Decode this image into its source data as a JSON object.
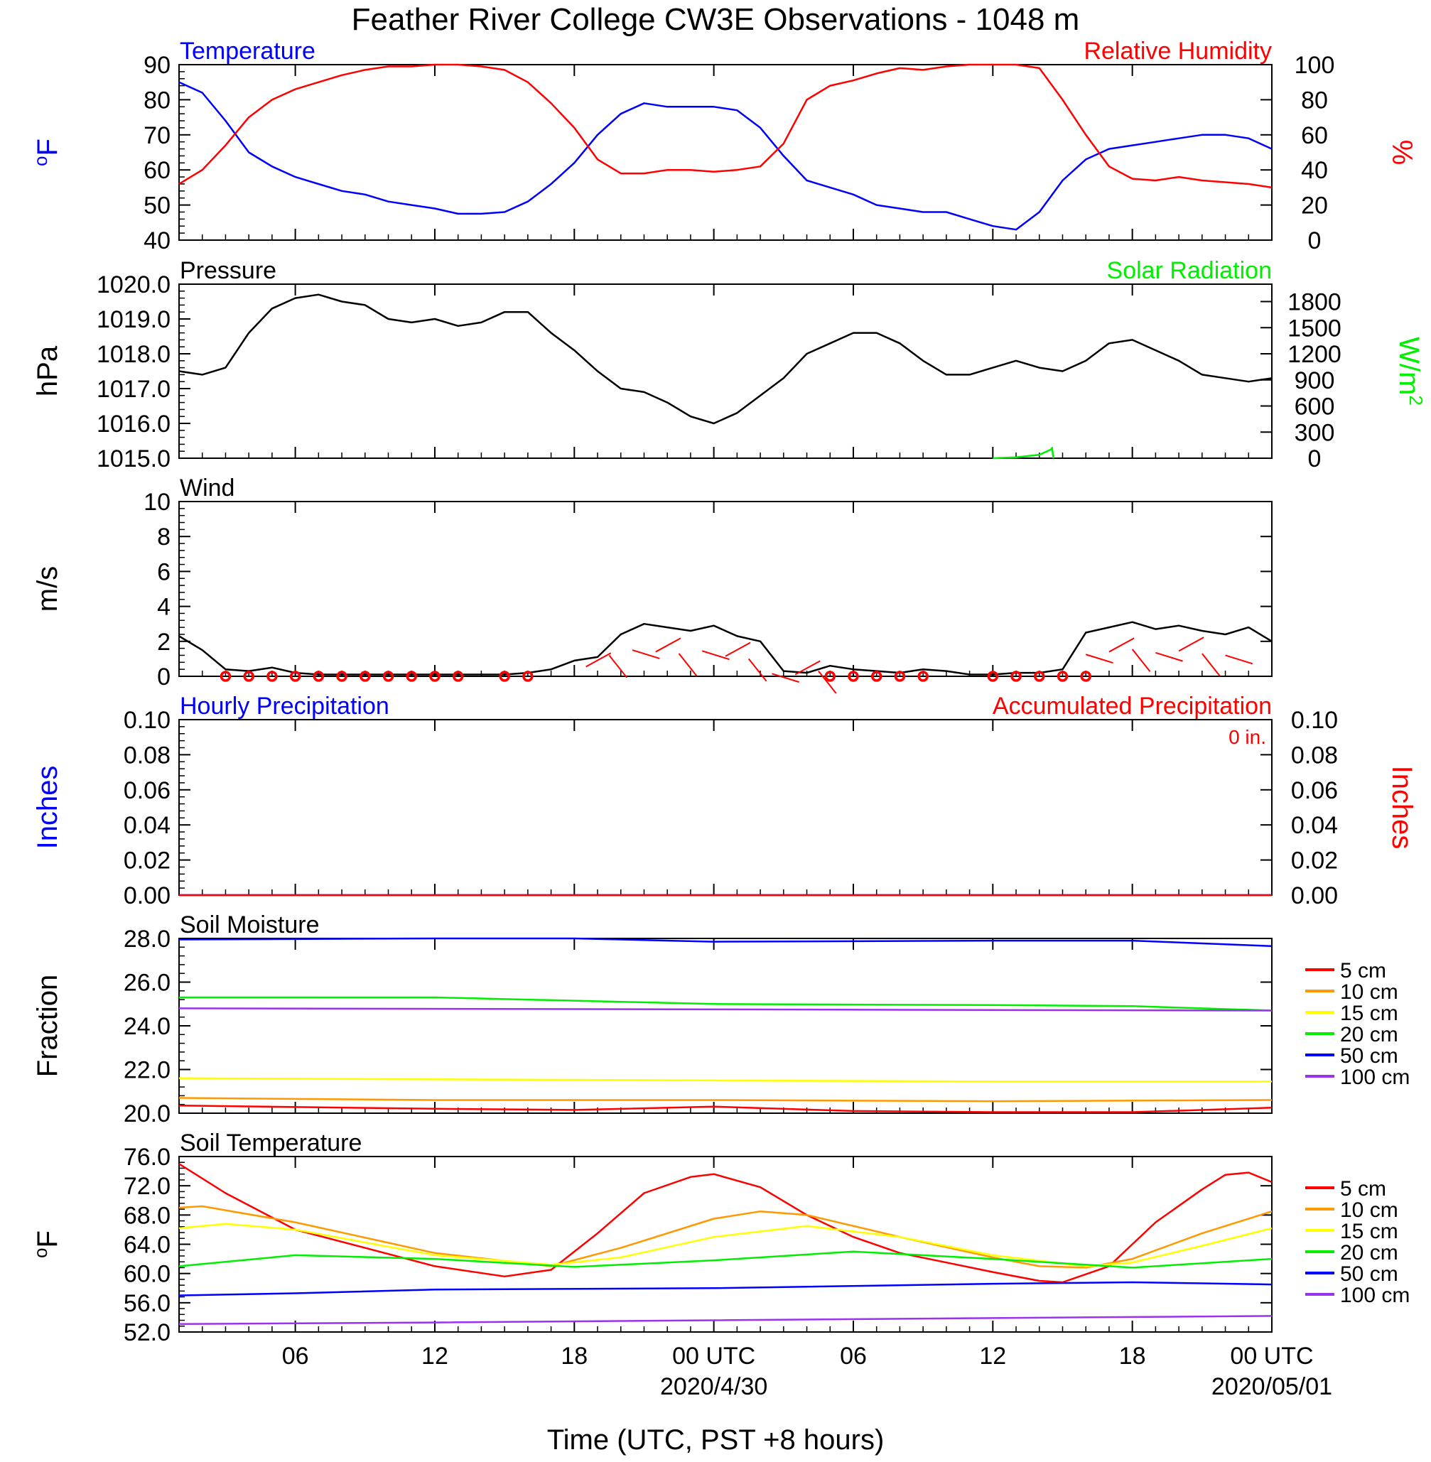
{
  "figure": {
    "title": "Feather River College CW3E Observations - 1048 m",
    "xlabel": "Time (UTC, PST +8 hours)"
  },
  "colors": {
    "temperature": "#0000ff",
    "humidity": "#ff0000",
    "solar": "#00ee00",
    "wind_speed": "#000000",
    "wind_barb": "#ff0000",
    "hourly_precip": "#0000ff",
    "accum_precip": "#ff0000",
    "depth_5cm": "#ff0000",
    "depth_10cm": "#ff9900",
    "depth_15cm": "#ffff00",
    "depth_20cm": "#00ee00",
    "depth_50cm": "#0000ff",
    "depth_100cm": "#9933ee"
  },
  "chart_data": [
    {
      "type": "line",
      "panel": "temperature_humidity",
      "title_left": "Temperature",
      "title_right": "Relative Humidity",
      "ylabel_left": "oF",
      "ylabel_right": "%",
      "ylim_left": [
        40,
        90
      ],
      "yticks_left": [
        "40",
        "50",
        "60",
        "70",
        "80",
        "90"
      ],
      "ylim_right": [
        0,
        100
      ],
      "yticks_right": [
        "0",
        "20",
        "40",
        "60",
        "80",
        "100"
      ],
      "x_hours": [
        1,
        48
      ],
      "series": [
        {
          "name": "Temperature",
          "axis": "left",
          "color_key": "temperature",
          "x": [
            1,
            2,
            3,
            4,
            5,
            6,
            7,
            8,
            9,
            10,
            11,
            12,
            13,
            14,
            15,
            16,
            17,
            18,
            19,
            20,
            21,
            22,
            23,
            24,
            25,
            26,
            27,
            28,
            29,
            30,
            31,
            32,
            33,
            34,
            35,
            36,
            37,
            38,
            39,
            40,
            41,
            42,
            43,
            44,
            45,
            46,
            47,
            48
          ],
          "values": [
            85,
            82,
            74,
            65,
            61,
            58,
            56,
            54,
            53,
            51,
            50,
            49,
            47.5,
            47.5,
            48,
            51,
            56,
            62,
            70,
            76,
            79,
            78,
            78,
            78,
            77,
            72,
            64,
            57,
            55,
            53,
            50,
            49,
            48,
            48,
            46,
            44,
            43,
            48,
            57,
            63,
            66,
            67,
            68,
            69,
            70,
            70,
            69,
            66
          ]
        },
        {
          "name": "Relative Humidity",
          "axis": "right",
          "color_key": "humidity",
          "x": [
            1,
            2,
            3,
            4,
            5,
            6,
            7,
            8,
            9,
            10,
            11,
            12,
            13,
            14,
            15,
            16,
            17,
            18,
            19,
            20,
            21,
            22,
            23,
            24,
            25,
            26,
            27,
            28,
            29,
            30,
            31,
            32,
            33,
            34,
            35,
            36,
            37,
            38,
            39,
            40,
            41,
            42,
            43,
            44,
            45,
            46,
            47,
            48
          ],
          "values": [
            32,
            40,
            54,
            70,
            80,
            86,
            90,
            94,
            97,
            99,
            99,
            100,
            100,
            99,
            97,
            90,
            78,
            64,
            46,
            38,
            38,
            40,
            40,
            39,
            40,
            42,
            55,
            80,
            88,
            91,
            95,
            98,
            97,
            99,
            100,
            100,
            100,
            98,
            80,
            60,
            42,
            35,
            34,
            36,
            34,
            33,
            32,
            30
          ]
        }
      ]
    },
    {
      "type": "line",
      "panel": "pressure_solar",
      "title_left": "Pressure",
      "title_right": "Solar Radiation",
      "ylabel_left": "hPa",
      "ylabel_right": "W/m2",
      "ylim_left": [
        1015.0,
        1020.0
      ],
      "yticks_left": [
        "1015.0",
        "1016.0",
        "1017.0",
        "1018.0",
        "1019.0",
        "1020.0"
      ],
      "ylim_right": [
        0,
        2000
      ],
      "yticks_right": [
        "0",
        "300",
        "600",
        "900",
        "1200",
        "1500",
        "1800"
      ],
      "x_hours": [
        1,
        48
      ],
      "series": [
        {
          "name": "Pressure",
          "axis": "left",
          "color_key": "wind_speed",
          "x": [
            1,
            2,
            3,
            4,
            5,
            6,
            7,
            8,
            9,
            10,
            11,
            12,
            13,
            14,
            15,
            16,
            17,
            18,
            19,
            20,
            21,
            22,
            23,
            24,
            25,
            26,
            27,
            28,
            29,
            30,
            31,
            32,
            33,
            34,
            35,
            36,
            37,
            38,
            39,
            40,
            41,
            42,
            43,
            44,
            45,
            46,
            47,
            48
          ],
          "values": [
            1017.5,
            1017.4,
            1017.6,
            1018.6,
            1019.3,
            1019.6,
            1019.7,
            1019.5,
            1019.4,
            1019.0,
            1018.9,
            1019.0,
            1018.8,
            1018.9,
            1019.2,
            1019.2,
            1018.6,
            1018.1,
            1017.5,
            1017.0,
            1016.9,
            1016.6,
            1016.2,
            1016.0,
            1016.3,
            1016.8,
            1017.3,
            1018.0,
            1018.3,
            1018.6,
            1018.6,
            1018.3,
            1017.8,
            1017.4,
            1017.4,
            1017.6,
            1017.8,
            1017.6,
            1017.5,
            1017.8,
            1018.3,
            1018.4,
            1018.1,
            1017.8,
            1017.4,
            1017.3,
            1017.2,
            1017.3
          ]
        },
        {
          "name": "Solar Radiation",
          "axis": "right",
          "color_key": "solar",
          "x": [
            36,
            37,
            38,
            38.5,
            38.55,
            38.6
          ],
          "values": [
            0,
            10,
            40,
            100,
            120,
            0
          ]
        }
      ]
    },
    {
      "type": "line",
      "panel": "wind",
      "title_left": "Wind",
      "ylabel_left": "m/s",
      "ylim_left": [
        0,
        10
      ],
      "yticks_left": [
        "0",
        "2",
        "4",
        "6",
        "8",
        "10"
      ],
      "x_hours": [
        1,
        48
      ],
      "series": [
        {
          "name": "Wind",
          "axis": "left",
          "color_key": "wind_speed",
          "x": [
            1,
            2,
            3,
            4,
            5,
            6,
            7,
            8,
            9,
            10,
            11,
            12,
            13,
            14,
            15,
            16,
            17,
            18,
            19,
            20,
            21,
            22,
            23,
            24,
            25,
            26,
            27,
            28,
            29,
            30,
            31,
            32,
            33,
            34,
            35,
            36,
            37,
            38,
            39,
            40,
            41,
            42,
            43,
            44,
            45,
            46,
            47,
            48
          ],
          "values": [
            2.3,
            1.5,
            0.4,
            0.3,
            0.5,
            0.2,
            0.1,
            0.1,
            0.1,
            0.1,
            0.1,
            0.1,
            0.1,
            0.1,
            0.1,
            0.2,
            0.4,
            0.9,
            1.1,
            2.4,
            3.0,
            2.8,
            2.6,
            2.9,
            2.3,
            2.0,
            0.3,
            0.2,
            0.6,
            0.4,
            0.3,
            0.2,
            0.4,
            0.3,
            0.1,
            0.1,
            0.2,
            0.2,
            0.4,
            2.5,
            2.8,
            3.1,
            2.7,
            2.9,
            2.6,
            2.4,
            2.8,
            2.0
          ]
        },
        {
          "name": "Calm",
          "axis": "left",
          "color_key": "wind_barb",
          "x": [
            3,
            4,
            5,
            6,
            7,
            8,
            9,
            10,
            11,
            12,
            13,
            15,
            16,
            29,
            30,
            31,
            32,
            33,
            36,
            37,
            38,
            39,
            40
          ],
          "values": [
            0,
            0,
            0,
            0,
            0,
            0,
            0,
            0,
            0,
            0,
            0,
            0,
            0,
            0,
            0,
            0,
            0,
            0,
            0,
            0,
            0,
            0,
            0
          ]
        }
      ]
    },
    {
      "type": "line",
      "panel": "precipitation",
      "title_left": "Hourly Precipitation",
      "title_right": "Accumulated Precipitation",
      "annotation": "0 in.",
      "ylabel_left": "Inches",
      "ylabel_right": "Inches",
      "ylim_left": [
        0,
        0.1
      ],
      "yticks_left": [
        "0.00",
        "0.02",
        "0.04",
        "0.06",
        "0.08",
        "0.10"
      ],
      "ylim_right": [
        0,
        0.1
      ],
      "yticks_right": [
        "0.00",
        "0.02",
        "0.04",
        "0.06",
        "0.08",
        "0.10"
      ],
      "x_hours": [
        1,
        48
      ],
      "series": [
        {
          "name": "Hourly Precipitation",
          "axis": "left",
          "color_key": "hourly_precip",
          "x": [
            1,
            48
          ],
          "values": [
            0,
            0
          ]
        },
        {
          "name": "Accumulated Precipitation",
          "axis": "right",
          "color_key": "accum_precip",
          "x": [
            1,
            48
          ],
          "values": [
            0,
            0
          ]
        }
      ]
    },
    {
      "type": "line",
      "panel": "soil_moisture",
      "title_left": "Soil Moisture",
      "ylabel_left": "Fraction",
      "ylim_left": [
        20.0,
        28.0
      ],
      "yticks_left": [
        "20.0",
        "22.0",
        "24.0",
        "26.0",
        "28.0"
      ],
      "x_hours": [
        1,
        48
      ],
      "series": [
        {
          "name": "5 cm",
          "axis": "left",
          "color_key": "depth_5cm",
          "x": [
            1,
            12,
            18,
            24,
            30,
            36,
            42,
            48
          ],
          "values": [
            20.35,
            20.2,
            20.15,
            20.3,
            20.1,
            20.05,
            20.05,
            20.25
          ]
        },
        {
          "name": "10 cm",
          "axis": "left",
          "color_key": "depth_10cm",
          "x": [
            1,
            12,
            24,
            36,
            48
          ],
          "values": [
            20.7,
            20.6,
            20.6,
            20.55,
            20.6
          ]
        },
        {
          "name": "15 cm",
          "axis": "left",
          "color_key": "depth_15cm",
          "x": [
            1,
            12,
            24,
            36,
            48
          ],
          "values": [
            21.6,
            21.55,
            21.5,
            21.45,
            21.45
          ]
        },
        {
          "name": "20 cm",
          "axis": "left",
          "color_key": "depth_20cm",
          "x": [
            1,
            12,
            24,
            36,
            42,
            48
          ],
          "values": [
            25.3,
            25.3,
            25.0,
            24.95,
            24.9,
            24.7
          ]
        },
        {
          "name": "50 cm",
          "axis": "left",
          "color_key": "depth_50cm",
          "x": [
            1,
            12,
            18,
            24,
            36,
            42,
            48
          ],
          "values": [
            27.95,
            28.0,
            28.0,
            27.85,
            27.9,
            27.9,
            27.65
          ]
        },
        {
          "name": "100 cm",
          "axis": "left",
          "color_key": "depth_100cm",
          "x": [
            1,
            24,
            48
          ],
          "values": [
            24.8,
            24.75,
            24.7
          ]
        }
      ]
    },
    {
      "type": "line",
      "panel": "soil_temperature",
      "title_left": "Soil Temperature",
      "ylabel_left": "oF",
      "ylim_left": [
        52.0,
        76.0
      ],
      "yticks_left": [
        "52.0",
        "56.0",
        "60.0",
        "64.0",
        "68.0",
        "72.0",
        "76.0"
      ],
      "x_hours": [
        1,
        48
      ],
      "series": [
        {
          "name": "5 cm",
          "axis": "left",
          "color_key": "depth_5cm",
          "x": [
            1,
            3,
            6,
            9,
            12,
            15,
            17,
            19,
            21,
            23,
            24,
            26,
            28,
            30,
            32,
            34,
            36,
            38,
            39,
            41,
            43,
            45,
            46,
            47,
            48
          ],
          "values": [
            75.0,
            71.0,
            66.0,
            63.5,
            61.0,
            59.6,
            60.5,
            65.5,
            71.0,
            73.2,
            73.6,
            71.8,
            68.0,
            65.0,
            62.8,
            61.5,
            60.2,
            59.0,
            58.8,
            61.0,
            67.0,
            71.5,
            73.5,
            73.8,
            72.5
          ]
        },
        {
          "name": "10 cm",
          "axis": "left",
          "color_key": "depth_10cm",
          "x": [
            1,
            2,
            6,
            12,
            17,
            20,
            24,
            26,
            28,
            32,
            36,
            38,
            40,
            42,
            45,
            48
          ],
          "values": [
            69.0,
            69.2,
            67.0,
            62.8,
            61.0,
            63.5,
            67.5,
            68.5,
            68.0,
            65.0,
            62.2,
            61.0,
            60.8,
            62.0,
            65.5,
            68.5
          ]
        },
        {
          "name": "15 cm",
          "axis": "left",
          "color_key": "depth_15cm",
          "x": [
            1,
            3,
            6,
            12,
            17,
            20,
            24,
            28,
            32,
            36,
            40,
            42,
            45,
            48
          ],
          "values": [
            66.2,
            66.8,
            66.0,
            62.5,
            61.2,
            62.2,
            65.0,
            66.5,
            65.0,
            62.5,
            61.0,
            61.5,
            63.8,
            66.2
          ]
        },
        {
          "name": "20 cm",
          "axis": "left",
          "color_key": "depth_20cm",
          "x": [
            1,
            6,
            12,
            18,
            24,
            30,
            36,
            42,
            48
          ],
          "values": [
            61.0,
            62.5,
            62.0,
            60.9,
            61.8,
            63.0,
            62.0,
            60.8,
            62.0
          ]
        },
        {
          "name": "50 cm",
          "axis": "left",
          "color_key": "depth_50cm",
          "x": [
            1,
            6,
            12,
            24,
            36,
            42,
            48
          ],
          "values": [
            57.0,
            57.3,
            57.8,
            58.0,
            58.6,
            58.8,
            58.5
          ]
        },
        {
          "name": "100 cm",
          "axis": "left",
          "color_key": "depth_100cm",
          "x": [
            1,
            12,
            24,
            36,
            48
          ],
          "values": [
            53.1,
            53.3,
            53.6,
            53.9,
            54.2
          ]
        }
      ]
    }
  ],
  "wind_barbs_hours": [
    18.5,
    19.5,
    20.5,
    21.5,
    22.5,
    23.5,
    24.5,
    25.5,
    26.5,
    27.5,
    28.5,
    40,
    41,
    42,
    43,
    44,
    45,
    46
  ],
  "legend": {
    "items": [
      {
        "label": "5 cm",
        "color_key": "depth_5cm"
      },
      {
        "label": "10 cm",
        "color_key": "depth_10cm"
      },
      {
        "label": "15 cm",
        "color_key": "depth_15cm"
      },
      {
        "label": "20 cm",
        "color_key": "depth_20cm"
      },
      {
        "label": "50 cm",
        "color_key": "depth_50cm"
      },
      {
        "label": "100 cm",
        "color_key": "depth_100cm"
      }
    ]
  },
  "x_axis": {
    "ticks": [
      {
        "hour": 6,
        "label": "06"
      },
      {
        "hour": 12,
        "label": "12"
      },
      {
        "hour": 18,
        "label": "18"
      },
      {
        "hour": 24,
        "label": "00 UTC",
        "date": "2020/4/30"
      },
      {
        "hour": 30,
        "label": "06"
      },
      {
        "hour": 36,
        "label": "12"
      },
      {
        "hour": 42,
        "label": "18"
      },
      {
        "hour": 48,
        "label": "00 UTC",
        "date": "2020/05/01"
      }
    ]
  }
}
